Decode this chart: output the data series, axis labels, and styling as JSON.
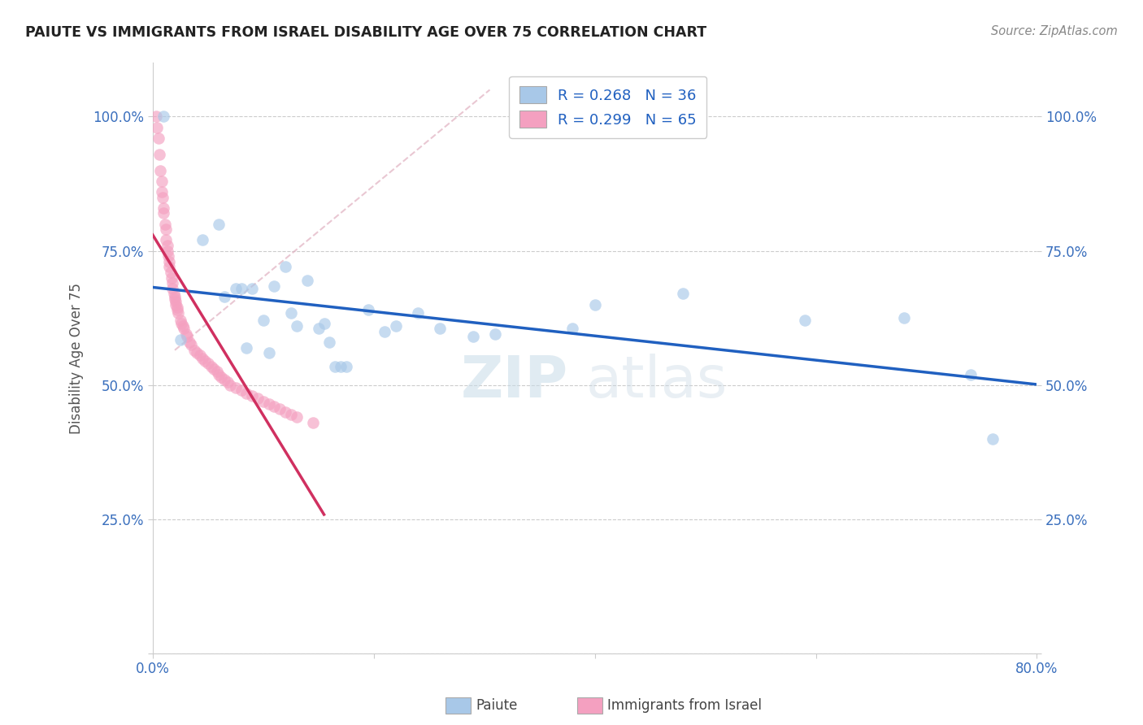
{
  "title": "PAIUTE VS IMMIGRANTS FROM ISRAEL DISABILITY AGE OVER 75 CORRELATION CHART",
  "source": "Source: ZipAtlas.com",
  "ylabel_label": "Disability Age Over 75",
  "legend_label1": "Paiute",
  "legend_label2": "Immigrants from Israel",
  "R1": 0.268,
  "N1": 36,
  "R2": 0.299,
  "N2": 65,
  "xlim": [
    0.0,
    0.8
  ],
  "ylim": [
    0.0,
    1.1
  ],
  "xticks": [
    0.0,
    0.2,
    0.4,
    0.6,
    0.8
  ],
  "xtick_labels": [
    "0.0%",
    "",
    "",
    "",
    "80.0%"
  ],
  "ytick_positions": [
    0.0,
    0.25,
    0.5,
    0.75,
    1.0
  ],
  "ytick_labels": [
    "",
    "25.0%",
    "50.0%",
    "75.0%",
    "100.0%"
  ],
  "color_blue": "#a8c8e8",
  "color_pink": "#f4a0c0",
  "color_blue_line": "#2060c0",
  "color_pink_line": "#d03060",
  "color_dashed": "#e0b0c0",
  "watermark_zip": "ZIP",
  "watermark_atlas": "atlas",
  "paiute_x": [
    0.01,
    0.025,
    0.045,
    0.06,
    0.065,
    0.075,
    0.08,
    0.085,
    0.09,
    0.1,
    0.105,
    0.11,
    0.12,
    0.125,
    0.13,
    0.14,
    0.15,
    0.155,
    0.16,
    0.165,
    0.17,
    0.175,
    0.195,
    0.21,
    0.22,
    0.24,
    0.26,
    0.29,
    0.31,
    0.38,
    0.4,
    0.48,
    0.59,
    0.68,
    0.74,
    0.76
  ],
  "paiute_y": [
    1.0,
    0.585,
    0.77,
    0.8,
    0.665,
    0.68,
    0.68,
    0.57,
    0.68,
    0.62,
    0.56,
    0.685,
    0.72,
    0.635,
    0.61,
    0.695,
    0.605,
    0.615,
    0.58,
    0.535,
    0.535,
    0.535,
    0.64,
    0.6,
    0.61,
    0.635,
    0.605,
    0.59,
    0.595,
    0.605,
    0.65,
    0.67,
    0.62,
    0.625,
    0.52,
    0.4
  ],
  "israel_x": [
    0.003,
    0.004,
    0.005,
    0.006,
    0.007,
    0.008,
    0.008,
    0.009,
    0.01,
    0.01,
    0.011,
    0.012,
    0.012,
    0.013,
    0.013,
    0.014,
    0.015,
    0.015,
    0.016,
    0.017,
    0.018,
    0.018,
    0.019,
    0.02,
    0.02,
    0.021,
    0.021,
    0.022,
    0.022,
    0.023,
    0.025,
    0.026,
    0.027,
    0.028,
    0.03,
    0.031,
    0.033,
    0.035,
    0.038,
    0.04,
    0.043,
    0.045,
    0.047,
    0.05,
    0.053,
    0.055,
    0.058,
    0.06,
    0.062,
    0.065,
    0.068,
    0.07,
    0.075,
    0.08,
    0.085,
    0.09,
    0.095,
    0.1,
    0.105,
    0.11,
    0.115,
    0.12,
    0.125,
    0.13,
    0.145
  ],
  "israel_y": [
    1.0,
    0.98,
    0.96,
    0.93,
    0.9,
    0.88,
    0.86,
    0.85,
    0.83,
    0.82,
    0.8,
    0.79,
    0.77,
    0.76,
    0.75,
    0.74,
    0.73,
    0.72,
    0.71,
    0.7,
    0.69,
    0.68,
    0.67,
    0.665,
    0.66,
    0.655,
    0.65,
    0.645,
    0.64,
    0.635,
    0.62,
    0.615,
    0.61,
    0.605,
    0.595,
    0.59,
    0.58,
    0.575,
    0.565,
    0.56,
    0.555,
    0.55,
    0.545,
    0.54,
    0.535,
    0.53,
    0.525,
    0.52,
    0.515,
    0.51,
    0.505,
    0.5,
    0.495,
    0.49,
    0.485,
    0.48,
    0.475,
    0.47,
    0.465,
    0.46,
    0.455,
    0.45,
    0.445,
    0.44,
    0.43
  ]
}
